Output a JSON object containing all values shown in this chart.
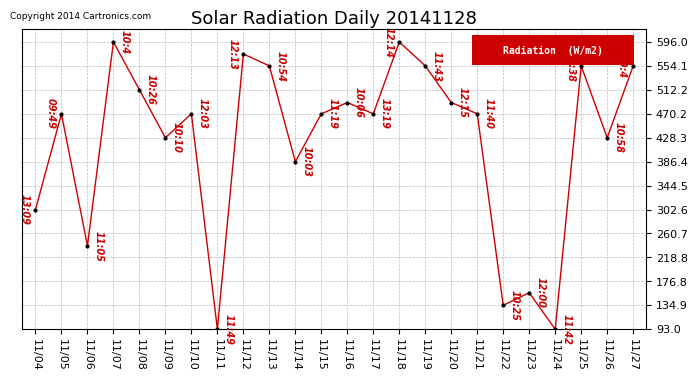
{
  "title": "Solar Radiation Daily 20141128",
  "copyright": "Copyright 2014 Cartronics.com",
  "legend_label": "Radiation  (W/m2)",
  "background_color": "#ffffff",
  "plot_bg_color": "#ffffff",
  "grid_color": "#bbbbbb",
  "line_color": "#cc0000",
  "marker_color": "#000000",
  "x_labels": [
    "11/04",
    "11/05",
    "11/06",
    "11/07",
    "11/08",
    "11/09",
    "11/10",
    "11/11",
    "11/12",
    "11/13",
    "11/14",
    "11/15",
    "11/16",
    "11/17",
    "11/18",
    "11/19",
    "11/20",
    "11/21",
    "11/22",
    "11/23",
    "11/24",
    "11/25",
    "11/26",
    "11/27"
  ],
  "y_values": [
    302.6,
    470.2,
    239.0,
    596.0,
    512.2,
    428.3,
    470.2,
    93.0,
    575.0,
    554.1,
    386.4,
    470.2,
    490.0,
    470.2,
    596.0,
    554.1,
    490.0,
    470.2,
    134.9,
    157.0,
    93.0,
    554.1,
    428.3,
    554.1
  ],
  "point_labels": [
    "13:09",
    "09:49",
    "11:05",
    "10:4",
    "10:26",
    "10:10",
    "12:03",
    "11:49",
    "12:13",
    "10:54",
    "10:03",
    "11:19",
    "10:06",
    "13:19",
    "12:14",
    "11:43",
    "12:15",
    "11:40",
    "10:25",
    "12:00",
    "11:42",
    "11:38",
    "10:58",
    "10:4"
  ],
  "label_side": [
    "left",
    "left",
    "right",
    "right",
    "right",
    "right",
    "right",
    "right",
    "right",
    "right",
    "right",
    "right",
    "right",
    "right",
    "right",
    "right",
    "right",
    "right",
    "right",
    "right",
    "right",
    "right",
    "right",
    "right"
  ],
  "ylim_min": 93.0,
  "ylim_max": 617.9,
  "yticks": [
    93.0,
    134.9,
    176.8,
    218.8,
    260.7,
    302.6,
    344.5,
    386.4,
    428.3,
    470.2,
    512.2,
    554.1,
    596.0
  ],
  "title_fontsize": 13,
  "axis_fontsize": 8,
  "label_fontsize": 7
}
